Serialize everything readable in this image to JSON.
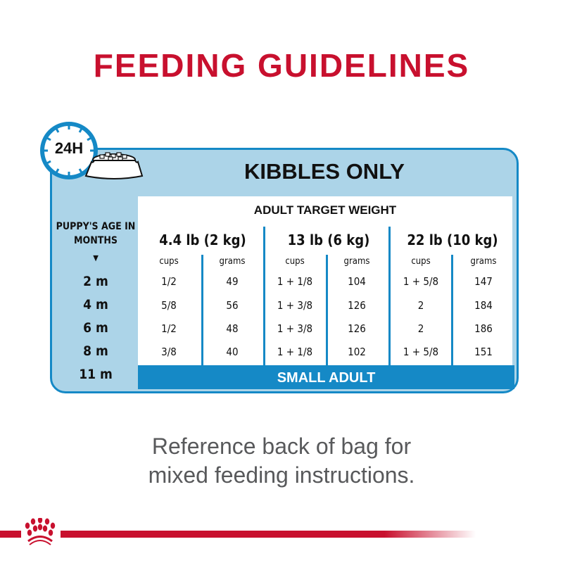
{
  "title": "FEEDING GUIDELINES",
  "badge": {
    "label": "24H",
    "icon": "clock-icon"
  },
  "section_title": "KIBBLES ONLY",
  "table": {
    "header": "ADULT TARGET WEIGHT",
    "age_header": "PUPPY'S AGE IN MONTHS",
    "weights": [
      "4.4 lb (2 kg)",
      "13 lb (6 kg)",
      "22 lb (10 kg)"
    ],
    "sub_headers": [
      "cups",
      "grams",
      "cups",
      "grams",
      "cups",
      "grams"
    ],
    "ages": [
      "2 m",
      "4 m",
      "6 m",
      "8 m",
      "11 m"
    ],
    "rows": [
      [
        "1/2",
        "49",
        "1 + 1/8",
        "104",
        "1 + 5/8",
        "147"
      ],
      [
        "5/8",
        "56",
        "1 + 3/8",
        "126",
        "2",
        "184"
      ],
      [
        "1/2",
        "48",
        "1 + 3/8",
        "126",
        "2",
        "186"
      ],
      [
        "3/8",
        "40",
        "1 + 1/8",
        "102",
        "1 + 5/8",
        "151"
      ]
    ],
    "final_row": "SMALL ADULT"
  },
  "note": "Reference back of bag for mixed feeding instructions.",
  "colors": {
    "brand_red": "#c8102e",
    "accent_blue": "#1589c6",
    "light_blue": "#acd4e8"
  }
}
